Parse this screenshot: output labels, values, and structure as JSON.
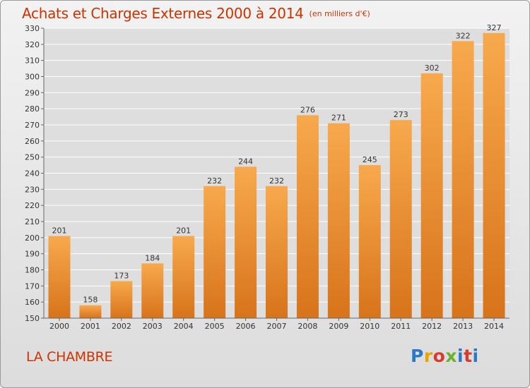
{
  "title": "Achats et Charges Externes 2000 à 2014",
  "unit_note": "(en milliers d'€)",
  "place_name": "LA CHAMBRE",
  "logo": {
    "text": "Proxiti"
  },
  "colors": {
    "title": "#cc3300",
    "bar_top": "#f8a94d",
    "bar_bottom": "#d7731b",
    "grid": "#ffffff",
    "axis_text": "#333333"
  },
  "chart_data": {
    "type": "bar",
    "title": "Achats et Charges Externes 2000 à 2014",
    "xlabel": "",
    "ylabel": "",
    "categories": [
      "2000",
      "2001",
      "2002",
      "2003",
      "2004",
      "2005",
      "2006",
      "2007",
      "2008",
      "2009",
      "2010",
      "2011",
      "2012",
      "2013",
      "2014"
    ],
    "values": [
      201,
      158,
      173,
      184,
      201,
      232,
      244,
      232,
      276,
      271,
      245,
      273,
      302,
      322,
      327
    ],
    "ylim": [
      150,
      330
    ],
    "y_tick_step": 10,
    "grid": true,
    "data_labels": true
  }
}
